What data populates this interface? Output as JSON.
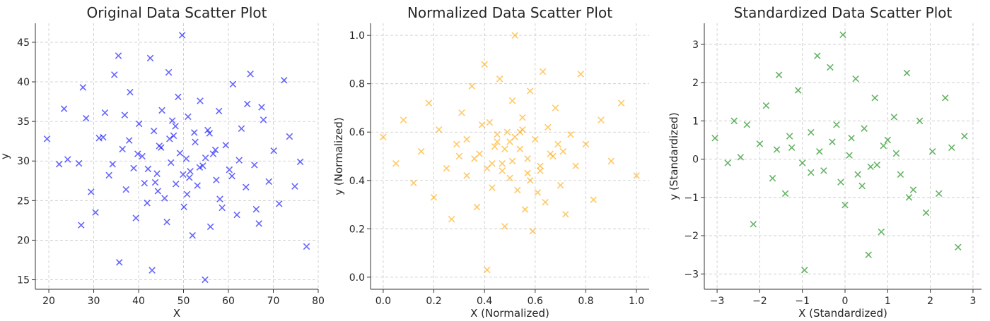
{
  "chart_data": [
    {
      "type": "scatter",
      "title": "Original Data Scatter Plot",
      "xlabel": "X",
      "ylabel": "y",
      "xlim": [
        17,
        80
      ],
      "ylim": [
        13.8,
        47.4
      ],
      "xticks": [
        20,
        30,
        40,
        50,
        60,
        70,
        80
      ],
      "yticks": [
        15,
        20,
        25,
        30,
        35,
        40,
        45
      ],
      "tick_labels_x": [
        "20",
        "30",
        "40",
        "50",
        "60",
        "70",
        "80"
      ],
      "tick_labels_y": [
        "15",
        "20",
        "25",
        "30",
        "35",
        "40",
        "45"
      ],
      "grid": true,
      "color": "#0000ff",
      "marker": "x",
      "series": [
        {
          "x": [
            19.6,
            22.3,
            23.4,
            24.2,
            26.7,
            27.2,
            27.6,
            28.3,
            29.4,
            30.4,
            31.2,
            32.5,
            33.4,
            34.6,
            35.5,
            35.7,
            36.4,
            37.2,
            38.1,
            38.9,
            39.4,
            40.1,
            40.8,
            41.3,
            41.9,
            42.6,
            43.0,
            43.4,
            44.1,
            44.6,
            45.2,
            45.8,
            46.3,
            46.7,
            47.2,
            47.8,
            48.3,
            48.8,
            49.2,
            49.7,
            50.1,
            50.6,
            51.0,
            51.5,
            52.0,
            52.6,
            53.1,
            53.7,
            54.3,
            54.8,
            55.4,
            56.0,
            56.6,
            57.3,
            57.9,
            58.6,
            59.4,
            60.2,
            61.0,
            61.9,
            62.9,
            63.9,
            64.9,
            65.8,
            66.8,
            67.8,
            69.0,
            70.1,
            71.3,
            72.4,
            73.6,
            74.8,
            76.0,
            77.4,
            45.0,
            47.5,
            49.9,
            52.4,
            54.9,
            44.3,
            46.9,
            51.3,
            53.6,
            48.2,
            50.8,
            39.8,
            57.1,
            43.7,
            55.8,
            42.1,
            58.1,
            37.9,
            60.8,
            36.9,
            62.4,
            64.2,
            34.2,
            32.1,
            66.2,
            67.4
          ],
          "y": [
            32.8,
            29.6,
            36.6,
            30.2,
            29.7,
            21.9,
            39.3,
            35.4,
            26.1,
            23.5,
            32.9,
            36.1,
            28.2,
            40.9,
            43.3,
            17.2,
            31.5,
            26.4,
            38.7,
            29.1,
            22.8,
            34.7,
            30.6,
            27.2,
            24.7,
            43.0,
            16.2,
            33.8,
            28.4,
            31.9,
            36.4,
            25.3,
            22.3,
            41.2,
            29.8,
            33.2,
            27.1,
            38.1,
            31.0,
            45.9,
            24.2,
            30.3,
            35.6,
            28.7,
            20.6,
            32.4,
            26.9,
            37.6,
            29.4,
            15.0,
            33.9,
            21.7,
            30.9,
            27.6,
            36.3,
            24.1,
            32.0,
            28.9,
            39.7,
            23.2,
            34.1,
            26.7,
            41.0,
            29.5,
            22.1,
            35.2,
            27.4,
            31.3,
            24.6,
            40.2,
            33.1,
            26.8,
            29.9,
            19.2,
            31.7,
            35.1,
            28.3,
            33.6,
            30.4,
            26.2,
            32.8,
            27.9,
            29.2,
            34.4,
            25.8,
            30.9,
            31.4,
            27.3,
            33.5,
            29.0,
            25.2,
            32.6,
            28.1,
            35.8,
            30.1,
            37.2,
            29.6,
            33.0,
            23.9,
            36.8
          ]
        }
      ]
    },
    {
      "type": "scatter",
      "title": "Normalized Data Scatter Plot",
      "xlabel": "X (Normalized)",
      "ylabel": "y (Normalized)",
      "xlim": [
        -0.05,
        1.05
      ],
      "ylim": [
        -0.05,
        1.05
      ],
      "xticks": [
        0.0,
        0.2,
        0.4,
        0.6,
        0.8,
        1.0
      ],
      "yticks": [
        0.0,
        0.2,
        0.4,
        0.6,
        0.8,
        1.0
      ],
      "tick_labels_x": [
        "0.0",
        "0.2",
        "0.4",
        "0.6",
        "0.8",
        "1.0"
      ],
      "tick_labels_y": [
        "0.0",
        "0.2",
        "0.4",
        "0.6",
        "0.8",
        "1.0"
      ],
      "grid": true,
      "color": "#ffa500",
      "marker": "x",
      "series": [
        {
          "x": [
            0.0,
            0.05,
            0.08,
            0.12,
            0.15,
            0.18,
            0.2,
            0.22,
            0.25,
            0.27,
            0.29,
            0.31,
            0.33,
            0.35,
            0.37,
            0.38,
            0.4,
            0.41,
            0.42,
            0.43,
            0.45,
            0.46,
            0.47,
            0.48,
            0.49,
            0.5,
            0.51,
            0.52,
            0.53,
            0.54,
            0.55,
            0.56,
            0.57,
            0.58,
            0.59,
            0.6,
            0.62,
            0.63,
            0.64,
            0.65,
            0.67,
            0.68,
            0.7,
            0.72,
            0.74,
            0.76,
            0.78,
            0.8,
            0.83,
            0.86,
            0.9,
            0.94,
            1.0,
            0.44,
            0.52,
            0.36,
            0.61,
            0.39,
            0.66,
            0.47,
            0.55,
            0.43,
            0.5,
            0.58,
            0.33,
            0.71,
            0.41,
            0.54,
            0.48,
            0.62,
            0.3,
            0.69,
            0.45,
            0.57,
            0.51
          ],
          "y": [
            0.58,
            0.47,
            0.65,
            0.39,
            0.52,
            0.72,
            0.33,
            0.61,
            0.45,
            0.24,
            0.55,
            0.68,
            0.42,
            0.79,
            0.29,
            0.51,
            0.88,
            0.03,
            0.64,
            0.37,
            0.56,
            0.82,
            0.47,
            0.21,
            0.6,
            0.41,
            0.73,
            1.0,
            0.36,
            0.53,
            0.66,
            0.28,
            0.49,
            0.77,
            0.19,
            0.57,
            0.44,
            0.85,
            0.31,
            0.62,
            0.5,
            0.7,
            0.38,
            0.26,
            0.59,
            0.46,
            0.84,
            0.55,
            0.32,
            0.65,
            0.48,
            0.72,
            0.42,
            0.54,
            0.58,
            0.49,
            0.35,
            0.63,
            0.51,
            0.44,
            0.61,
            0.47,
            0.56,
            0.4,
            0.57,
            0.52,
            0.45,
            0.6,
            0.53,
            0.46,
            0.5,
            0.55,
            0.59,
            0.43,
            0.48
          ]
        }
      ]
    },
    {
      "type": "scatter",
      "title": "Standardized Data Scatter Plot",
      "xlabel": "X (Standardized)",
      "ylabel": "y (Standardized)",
      "xlim": [
        -3.3,
        3.2
      ],
      "ylim": [
        -3.4,
        3.55
      ],
      "xticks": [
        -3,
        -2,
        -1,
        0,
        1,
        2,
        3
      ],
      "yticks": [
        -3,
        -2,
        -1,
        0,
        1,
        2,
        3
      ],
      "tick_labels_x": [
        "−3",
        "−2",
        "−1",
        "0",
        "1",
        "2",
        "3"
      ],
      "tick_labels_y": [
        "−3",
        "−2",
        "−1",
        "0",
        "1",
        "2",
        "3"
      ],
      "grid": true,
      "color": "#008000",
      "marker": "x",
      "series": [
        {
          "x": [
            -3.05,
            -2.75,
            -2.6,
            -2.45,
            -2.3,
            -2.15,
            -2.0,
            -1.85,
            -1.7,
            -1.55,
            -1.4,
            -1.25,
            -1.1,
            -0.95,
            -0.8,
            -0.65,
            -0.5,
            -0.35,
            -0.2,
            -0.05,
            0.0,
            0.1,
            0.25,
            0.4,
            0.55,
            0.7,
            0.85,
            1.0,
            1.15,
            1.3,
            1.45,
            1.6,
            1.75,
            1.9,
            2.05,
            2.2,
            2.35,
            2.5,
            2.65,
            2.8,
            -0.6,
            0.3,
            -1.0,
            0.9,
            -0.3,
            0.6,
            -1.3,
            1.2,
            -0.1,
            0.45,
            -0.8,
            0.15,
            1.5,
            -1.6,
            0.75
          ],
          "y": [
            0.55,
            -0.1,
            1.0,
            0.05,
            0.9,
            -1.7,
            0.4,
            1.4,
            -0.5,
            2.2,
            -0.9,
            0.3,
            1.8,
            -2.9,
            0.7,
            2.7,
            -0.3,
            2.4,
            0.9,
            3.25,
            -1.2,
            0.1,
            2.1,
            -0.7,
            -2.5,
            1.6,
            -1.9,
            0.5,
            1.1,
            -0.4,
            2.25,
            -0.8,
            1.0,
            -1.4,
            0.2,
            -0.9,
            1.6,
            0.3,
            -2.3,
            0.6,
            0.2,
            -0.4,
            -0.1,
            0.35,
            0.45,
            -0.2,
            0.6,
            0.15,
            -0.6,
            0.8,
            -0.35,
            0.55,
            -1.0,
            0.25,
            -0.15
          ]
        }
      ]
    }
  ]
}
